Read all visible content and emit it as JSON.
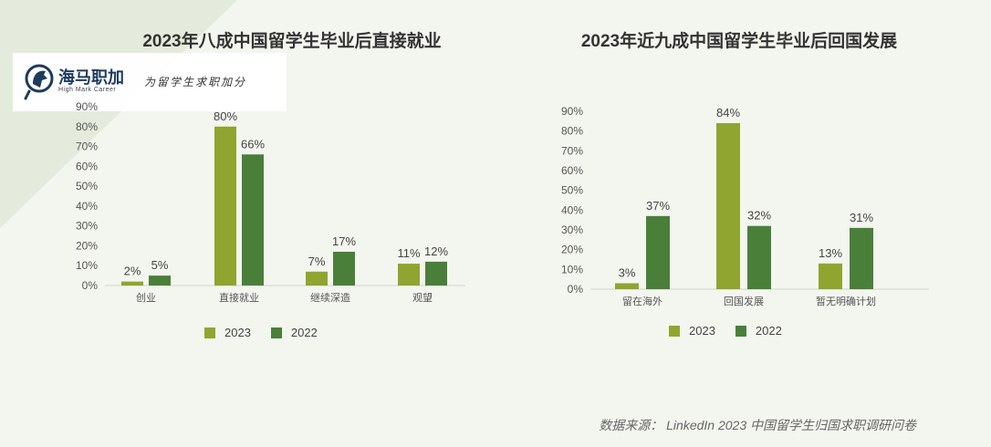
{
  "colors": {
    "series_2023": "#8fa52f",
    "series_2022": "#4a7f3a",
    "logo_blue": "#1e3a5c"
  },
  "logo": {
    "name": "海马职加",
    "subname": "High Mark Career",
    "slogan": "为留学生求职加分",
    "icon": "horse-head-icon"
  },
  "legend": {
    "label_2023": "2023",
    "label_2022": "2022"
  },
  "source": "数据来源：  LinkedIn 2023 中国留学生归国求职调研问卷",
  "chart_data": [
    {
      "type": "bar",
      "title": "2023年八成中国留学生毕业后直接就业",
      "categories": [
        "创业",
        "直接就业",
        "继续深造",
        "观望"
      ],
      "series": [
        {
          "name": "2023",
          "values": [
            2,
            80,
            7,
            11
          ],
          "labels": [
            "2%",
            "80%",
            "7%",
            "11%"
          ]
        },
        {
          "name": "2022",
          "values": [
            5,
            66,
            17,
            12
          ],
          "labels": [
            "5%",
            "66%",
            "17%",
            "12%"
          ]
        }
      ],
      "yticks": [
        "0%",
        "10%",
        "20%",
        "30%",
        "40%",
        "50%",
        "60%",
        "70%",
        "80%",
        "90%"
      ],
      "ylim": [
        0,
        90
      ],
      "legend_position": "bottom"
    },
    {
      "type": "bar",
      "title": "2023年近九成中国留学生毕业后回国发展",
      "categories": [
        "留在海外",
        "回国发展",
        "暂无明确计划"
      ],
      "series": [
        {
          "name": "2023",
          "values": [
            3,
            84,
            13
          ],
          "labels": [
            "3%",
            "84%",
            "13%"
          ]
        },
        {
          "name": "2022",
          "values": [
            37,
            32,
            31
          ],
          "labels": [
            "37%",
            "32%",
            "31%"
          ]
        }
      ],
      "yticks": [
        "0%",
        "10%",
        "20%",
        "30%",
        "40%",
        "50%",
        "60%",
        "70%",
        "80%",
        "90%"
      ],
      "ylim": [
        0,
        90
      ],
      "legend_position": "bottom"
    }
  ]
}
